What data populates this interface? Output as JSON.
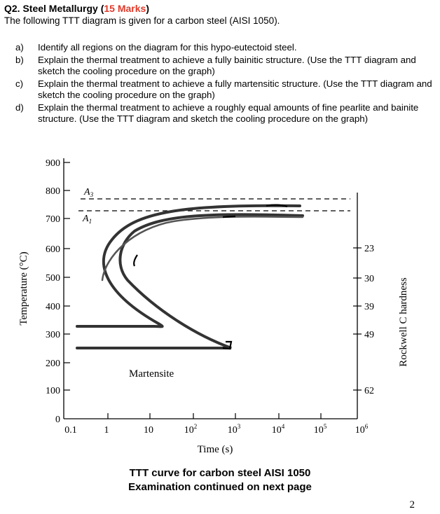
{
  "question": {
    "title_prefix": "Q2. Steel Metallurgy (",
    "marks": "15 Marks",
    "title_suffix": ")",
    "intro": "The following TTT diagram is given for a carbon steel (AISI 1050).",
    "items": [
      {
        "label": "a)",
        "text": "Identify all regions on the diagram for this hypo-eutectoid steel."
      },
      {
        "label": "b)",
        "text": "Explain the thermal treatment to achieve a fully bainitic structure. (Use the TTT diagram and sketch the cooling procedure on the graph)"
      },
      {
        "label": "c)",
        "text": "Explain the thermal treatment to achieve a fully martensitic structure. (Use the TTT diagram and sketch the cooling procedure on the graph)"
      },
      {
        "label": "d)",
        "text": "Explain the thermal treatment to achieve a roughly equal amounts of fine pearlite and bainite structure. (Use the TTT diagram and sketch the cooling procedure on the graph)"
      }
    ]
  },
  "diagram": {
    "ylabel": "Temperature (°C)",
    "xlabel": "Time (s)",
    "y2label": "Rockwell C hardness",
    "a3_label": "A",
    "a3_sub": "3",
    "a1_label": "A",
    "a1_sub": "1",
    "martensite_label": "Martensite",
    "y_ticks": [
      "900",
      "800",
      "700",
      "600",
      "500",
      "400",
      "300",
      "200",
      "100",
      "0"
    ],
    "x_ticks": [
      {
        "base": "0.1",
        "exp": ""
      },
      {
        "base": "1",
        "exp": ""
      },
      {
        "base": "10",
        "exp": ""
      },
      {
        "base": "10",
        "exp": "2"
      },
      {
        "base": "10",
        "exp": "3"
      },
      {
        "base": "10",
        "exp": "4"
      },
      {
        "base": "10",
        "exp": "5"
      },
      {
        "base": "10",
        "exp": "6"
      }
    ],
    "hardness_ticks": [
      "23",
      "30",
      "39",
      "49",
      "62"
    ]
  },
  "caption": {
    "line1": "TTT curve for carbon steel AISI 1050",
    "line2": "Examination continued on next page"
  },
  "page_number": "2"
}
